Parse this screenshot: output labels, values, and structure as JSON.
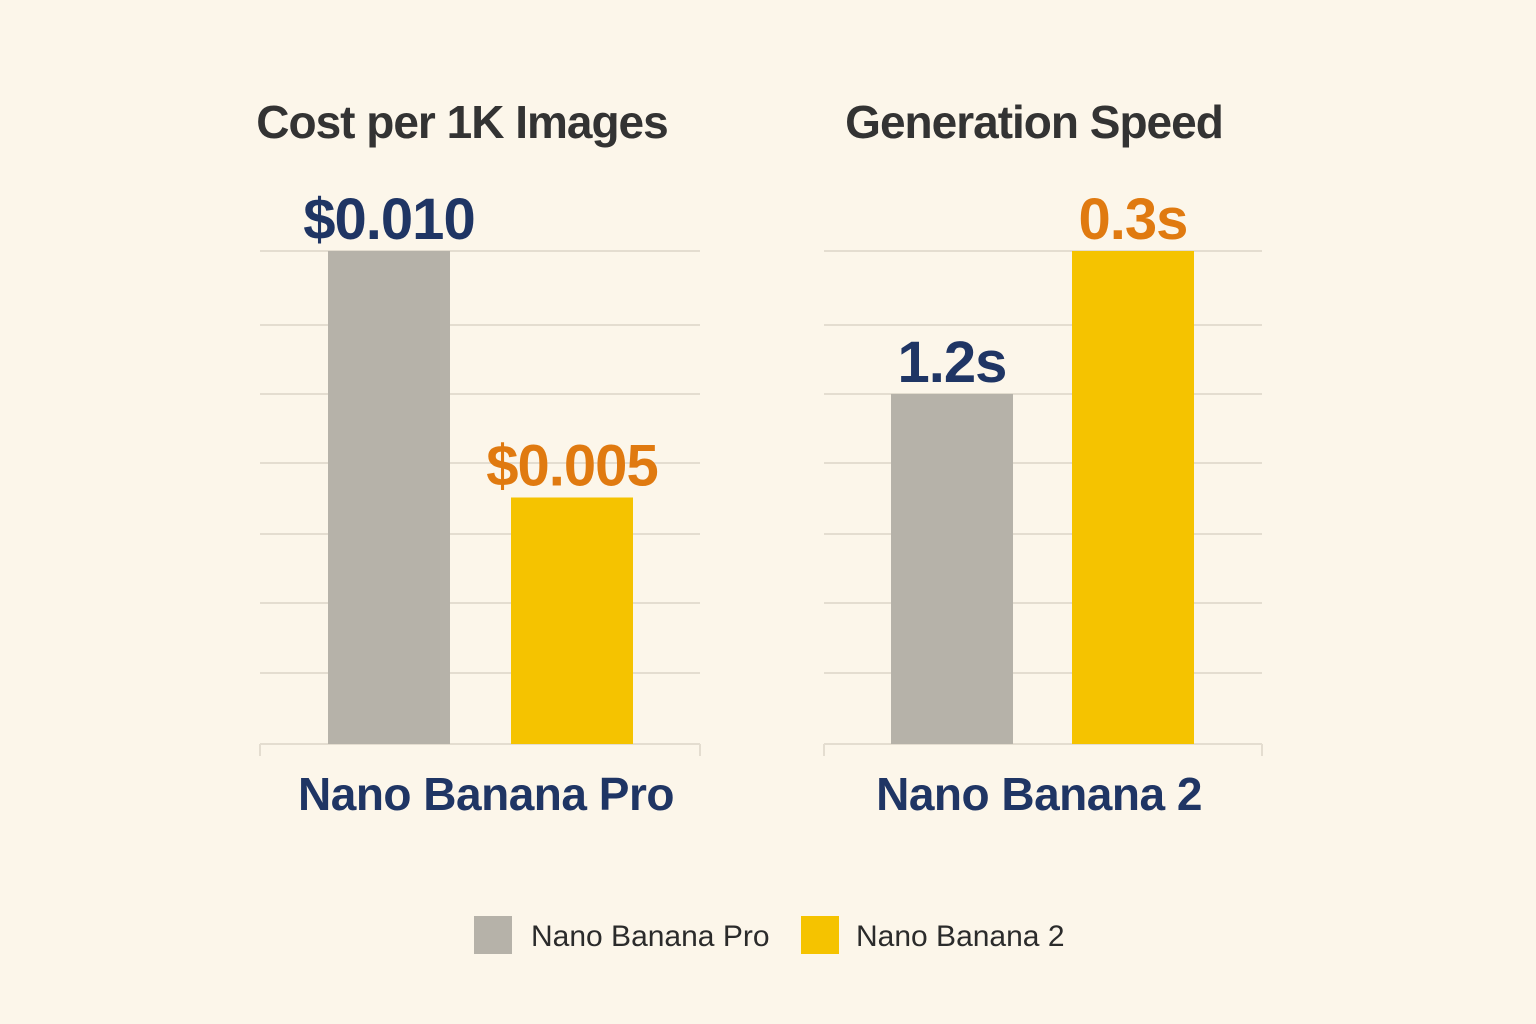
{
  "colors": {
    "background": "#fcf6ea",
    "pro_bar": "#b6b2a9",
    "nb2_bar": "#f5c300",
    "pro_label": "#1f3564",
    "nb2_label": "#e07a10",
    "grid": "#e4ddd0",
    "title": "#333333",
    "category": "#1f3564"
  },
  "legend": {
    "items": [
      {
        "name": "Nano Banana Pro",
        "color": "#b6b2a9"
      },
      {
        "name": "Nano Banana 2",
        "color": "#f5c300"
      }
    ],
    "placement": "bottom"
  },
  "chart_data": [
    {
      "type": "bar",
      "title": "Cost per 1K Images",
      "category_label": "Nano Banana Pro",
      "series": [
        {
          "name": "Nano Banana Pro",
          "value": 0.01,
          "label": "$0.010"
        },
        {
          "name": "Nano Banana 2",
          "value": 0.005,
          "label": "$0.005"
        }
      ],
      "ylim": [
        0,
        0.01
      ],
      "grid": true
    },
    {
      "type": "bar",
      "title": "Generation Speed",
      "category_label": "Nano Banana 2",
      "series": [
        {
          "name": "Nano Banana Pro",
          "value": 1.2,
          "label": "1.2s"
        },
        {
          "name": "Nano Banana 2",
          "value": 0.3,
          "label": "0.3s"
        }
      ],
      "grid": true
    }
  ]
}
